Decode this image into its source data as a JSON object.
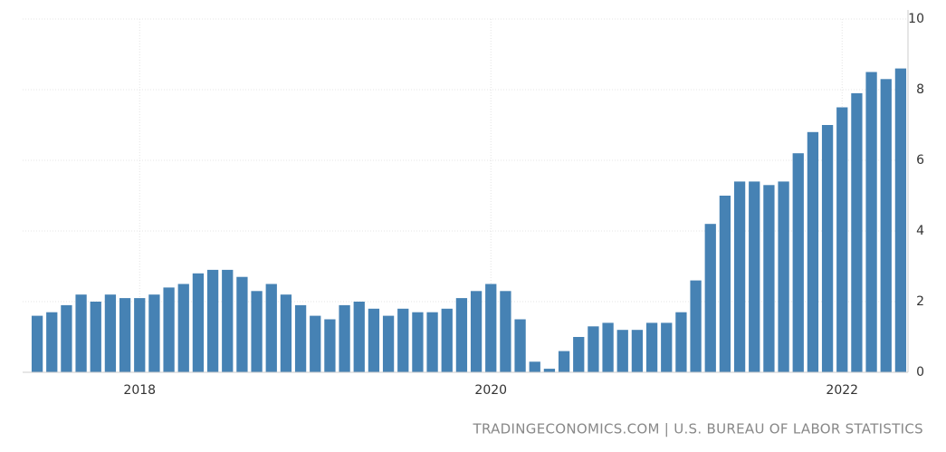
{
  "chart_data": {
    "type": "bar",
    "source": "TRADINGECONOMICS.COM | U.S. BUREAU OF LABOR STATISTICS",
    "categories": [
      null,
      null,
      null,
      null,
      null,
      null,
      null,
      "2018",
      null,
      null,
      null,
      null,
      null,
      null,
      null,
      null,
      null,
      null,
      null,
      null,
      null,
      null,
      null,
      null,
      null,
      null,
      null,
      null,
      null,
      null,
      null,
      "2020",
      null,
      null,
      null,
      null,
      null,
      null,
      null,
      null,
      null,
      null,
      null,
      null,
      null,
      null,
      null,
      null,
      null,
      null,
      null,
      null,
      null,
      null,
      null,
      "2022",
      null,
      null,
      null,
      null
    ],
    "values": [
      1.6,
      1.7,
      1.9,
      2.2,
      2.0,
      2.2,
      2.1,
      2.1,
      2.2,
      2.4,
      2.5,
      2.8,
      2.9,
      2.9,
      2.7,
      2.3,
      2.5,
      2.2,
      1.9,
      1.6,
      1.5,
      1.9,
      2.0,
      1.8,
      1.6,
      1.8,
      1.7,
      1.7,
      1.8,
      2.1,
      2.3,
      2.5,
      2.3,
      1.5,
      0.3,
      0.1,
      0.6,
      1.0,
      1.3,
      1.4,
      1.2,
      1.2,
      1.4,
      1.4,
      1.7,
      2.6,
      4.2,
      5.0,
      5.4,
      5.4,
      5.3,
      5.4,
      6.2,
      6.8,
      7.0,
      7.5,
      7.9,
      8.5,
      8.3,
      8.6
    ],
    "color": "#4682b4",
    "ylim": [
      0,
      10
    ],
    "yticks": [
      0,
      2,
      4,
      6,
      8,
      10
    ],
    "grid": true,
    "yaxis_side": "right"
  }
}
